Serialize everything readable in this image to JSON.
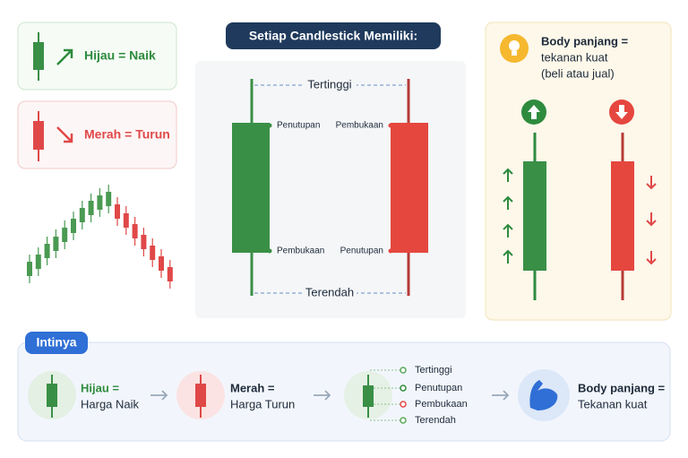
{
  "legend": [
    {
      "label": "Hijau = Naik"
    },
    {
      "label": "Merah = Turun"
    }
  ],
  "anatomy": {
    "title": "Setiap Candlestick Memiliki:",
    "high": "Tertinggi",
    "low": "Terendah",
    "green": {
      "top": "Penutupan",
      "bottom": "Pembukaan"
    },
    "red": {
      "top": "Pembukaan",
      "bottom": "Penutupan"
    }
  },
  "insight": {
    "lines": [
      "Body panjang =",
      "tekanan kuat",
      "(beli atau jual)"
    ]
  },
  "summary": {
    "title": "Intinya",
    "items": [
      {
        "lines": [
          "Hijau =",
          "Harga Naik"
        ]
      },
      {
        "lines": [
          "Merah =",
          "Harga Turun"
        ]
      },
      {
        "parts": [
          "Tertinggi",
          "Penutupan",
          "Pembukaan",
          "Terendah"
        ]
      },
      {
        "lines": [
          "Body panjang =",
          "Tekanan kuat"
        ]
      }
    ]
  }
}
